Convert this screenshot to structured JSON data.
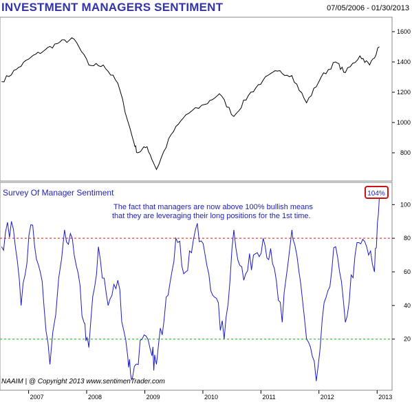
{
  "header": {
    "title": "INVESTMENT MANAGERS SENTIMENT",
    "date_range": "07/05/2006 - 01/30/2013"
  },
  "chart_data": [
    {
      "type": "line",
      "title": "",
      "series_name": "",
      "ylim": [
        650,
        1650
      ],
      "yticks": [
        800,
        1000,
        1200,
        1400,
        1600
      ],
      "line_color": "#000000",
      "x": [
        "2006-07",
        "2006-10",
        "2007-01",
        "2007-04",
        "2007-07",
        "2007-10",
        "2008-01",
        "2008-04",
        "2008-07",
        "2008-10",
        "2008-11",
        "2009-01",
        "2009-03",
        "2009-06",
        "2009-09",
        "2010-01",
        "2010-04",
        "2010-07",
        "2010-10",
        "2011-01",
        "2011-04",
        "2011-07",
        "2011-10",
        "2012-01",
        "2012-04",
        "2012-06",
        "2012-09",
        "2012-11",
        "2013-01"
      ],
      "values": [
        1270,
        1350,
        1430,
        1480,
        1530,
        1550,
        1380,
        1380,
        1260,
        900,
        800,
        840,
        690,
        920,
        1050,
        1120,
        1190,
        1040,
        1180,
        1280,
        1340,
        1310,
        1130,
        1300,
        1400,
        1330,
        1440,
        1380,
        1500
      ]
    },
    {
      "type": "line",
      "title": "Survey  Of  Manager  Sentiment",
      "series_name": "",
      "ylim": [
        -10,
        112
      ],
      "yticks": [
        20,
        40,
        60,
        80,
        100
      ],
      "line_color": "#1a1ac8",
      "reference_lines": [
        {
          "value": 80,
          "color": "#cc2222"
        },
        {
          "value": 20,
          "color": "#22aa22"
        }
      ],
      "x": [
        "2006-07",
        "2006-09",
        "2006-11",
        "2007-01",
        "2007-03",
        "2007-05",
        "2007-08",
        "2007-10",
        "2007-12",
        "2008-01",
        "2008-03",
        "2008-05",
        "2008-07",
        "2008-09",
        "2008-10",
        "2008-12",
        "2009-02",
        "2009-03",
        "2009-05",
        "2009-07",
        "2009-09",
        "2009-11",
        "2010-01",
        "2010-03",
        "2010-05",
        "2010-07",
        "2010-09",
        "2010-11",
        "2011-01",
        "2011-03",
        "2011-05",
        "2011-07",
        "2011-08",
        "2011-10",
        "2011-12",
        "2012-02",
        "2012-04",
        "2012-06",
        "2012-08",
        "2012-10",
        "2012-12",
        "2013-01"
      ],
      "values": [
        75,
        90,
        40,
        88,
        60,
        5,
        85,
        70,
        30,
        15,
        75,
        40,
        55,
        10,
        -3,
        20,
        10,
        5,
        45,
        80,
        60,
        85,
        70,
        45,
        20,
        85,
        55,
        70,
        80,
        65,
        30,
        85,
        70,
        20,
        -5,
        45,
        75,
        30,
        70,
        78,
        60,
        104
      ],
      "callout_label": "104%",
      "annotation": [
        "The fact that managers are now above 100% bullish means",
        "that they are leveraging their long positions for the 1st time."
      ],
      "credit": "NAAIM  |   @ Copyright 2013   www.sentimenTrader.com"
    }
  ],
  "x_axis": {
    "labels": [
      "2007",
      "2008",
      "2009",
      "2010",
      "2011",
      "2012",
      "2013"
    ],
    "start": "2006-07-05",
    "end": "2013-01-30"
  }
}
